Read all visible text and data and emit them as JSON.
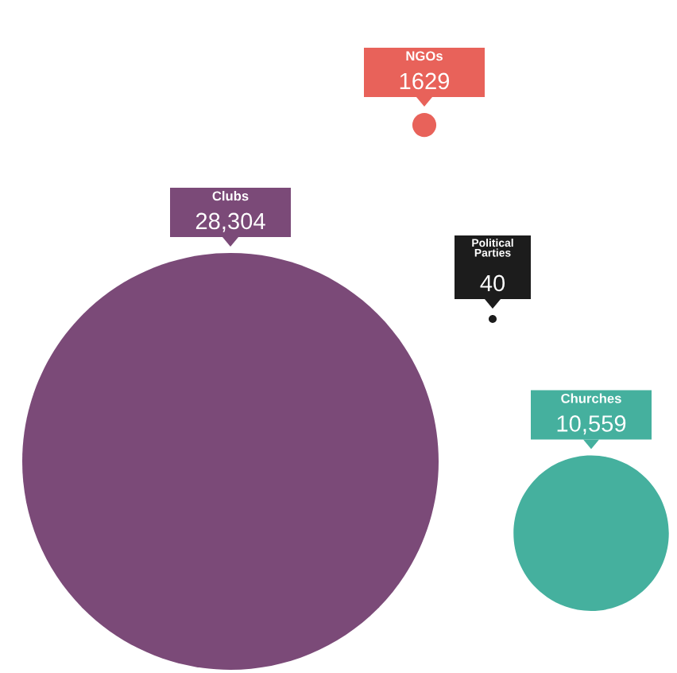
{
  "chart_data": {
    "type": "other",
    "categories": [
      "NGOs",
      "Clubs",
      "Political\nParties",
      "Churches"
    ],
    "values": [
      1629,
      28304,
      40,
      10559
    ],
    "value_labels": [
      "1629",
      "28,304",
      "40",
      "10,559"
    ],
    "colors": [
      "#e8625a",
      "#7b4a78",
      "#1c1c1c",
      "#45b09e"
    ]
  }
}
